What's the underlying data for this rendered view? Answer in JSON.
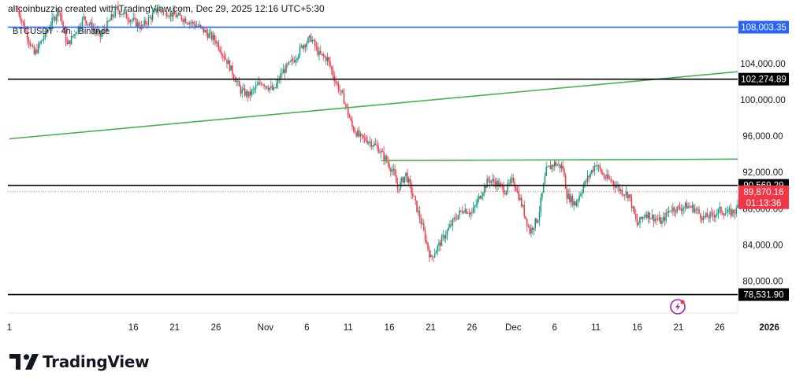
{
  "header": {
    "attribution": "altcoinbuzzio created with TradingView.com, Dec 29, 2025 12:16 UTC+5:30",
    "symbol_legend": "BTCUSDT · 4h · Binance"
  },
  "brand": {
    "name": "TradingView",
    "logo_icon": "tradingview-logo-icon"
  },
  "chart_data": {
    "type": "candlestick",
    "symbol": "BTCUSDT",
    "interval": "4h",
    "exchange": "Binance",
    "ylim": [
      76500,
      111000
    ],
    "y_ticks": [
      80000,
      84000,
      88000,
      92000,
      96000,
      100000,
      104000
    ],
    "y_tick_labels": [
      "80,000.00",
      "84,000.00",
      "88,000.00",
      "92,000.00",
      "96,000.00",
      "100,000.00",
      "104,000.00"
    ],
    "x_labels": [
      {
        "day": 0,
        "label": "1"
      },
      {
        "day": 15,
        "label": "16"
      },
      {
        "day": 20,
        "label": "21"
      },
      {
        "day": 25,
        "label": "26"
      },
      {
        "day": 31,
        "label": "Nov"
      },
      {
        "day": 36,
        "label": "6"
      },
      {
        "day": 41,
        "label": "11"
      },
      {
        "day": 46,
        "label": "16"
      },
      {
        "day": 51,
        "label": "21"
      },
      {
        "day": 56,
        "label": "26"
      },
      {
        "day": 61,
        "label": "Dec"
      },
      {
        "day": 66,
        "label": "6"
      },
      {
        "day": 71,
        "label": "11"
      },
      {
        "day": 76,
        "label": "16"
      },
      {
        "day": 81,
        "label": "21"
      },
      {
        "day": 86,
        "label": "26"
      },
      {
        "day": 92,
        "label": "2026"
      }
    ],
    "colors": {
      "up": "#089981",
      "down": "#f23645",
      "blue_line": "#2962ff",
      "level_line": "#000000",
      "trend_line": "#4caf50"
    },
    "horizontal_levels": [
      {
        "value": 108003.35,
        "label": "108,003.35",
        "color": "#2962ff"
      },
      {
        "value": 102274.89,
        "label": "102,274.89",
        "color": "#000000"
      },
      {
        "value": 90569.29,
        "label": "90,569.29",
        "color": "#000000"
      },
      {
        "value": 78531.9,
        "label": "78,531.90",
        "color": "#000000"
      }
    ],
    "trendlines": [
      {
        "from": {
          "day": 0,
          "price": 95700
        },
        "to": {
          "day": 99,
          "price": 104000
        },
        "color": "#4caf50"
      },
      {
        "from": {
          "day": 45,
          "price": 93300
        },
        "to": {
          "day": 99,
          "price": 93500
        },
        "color": "#4caf50"
      }
    ],
    "last_price": {
      "value": 89870.16,
      "label": "89,870.16",
      "countdown": "01:13:36",
      "color": "#f23645"
    },
    "path": [
      [
        1.0,
        110000
      ],
      [
        3.0,
        105000
      ],
      [
        6.0,
        110000
      ],
      [
        7.0,
        106000
      ],
      [
        9.0,
        109000
      ],
      [
        11.0,
        107000
      ],
      [
        13.0,
        110000
      ],
      [
        16.0,
        108000
      ],
      [
        18.0,
        110000
      ],
      [
        21.0,
        109000
      ],
      [
        23.0,
        108000
      ],
      [
        25.0,
        106500
      ],
      [
        26.5,
        104000
      ],
      [
        28.0,
        101000
      ],
      [
        29.0,
        100500
      ],
      [
        30.5,
        102000
      ],
      [
        32.0,
        101000
      ],
      [
        33.0,
        103000
      ],
      [
        34.5,
        104500
      ],
      [
        35.5,
        106000
      ],
      [
        36.5,
        106800
      ],
      [
        37.5,
        105000
      ],
      [
        38.5,
        104500
      ],
      [
        39.5,
        102000
      ],
      [
        40.5,
        100000
      ],
      [
        41.5,
        97000
      ],
      [
        42.5,
        95800
      ],
      [
        43.5,
        95500
      ],
      [
        44.5,
        94800
      ],
      [
        45.5,
        93500
      ],
      [
        46.5,
        92000
      ],
      [
        47.0,
        90200
      ],
      [
        48.0,
        91800
      ],
      [
        49.0,
        89000
      ],
      [
        50.0,
        86000
      ],
      [
        51.0,
        82500
      ],
      [
        52.0,
        84000
      ],
      [
        53.0,
        85500
      ],
      [
        54.0,
        87000
      ],
      [
        55.0,
        88000
      ],
      [
        56.0,
        87500
      ],
      [
        57.0,
        89500
      ],
      [
        58.0,
        91200
      ],
      [
        59.0,
        90800
      ],
      [
        60.0,
        90000
      ],
      [
        61.0,
        91200
      ],
      [
        62.0,
        88500
      ],
      [
        63.0,
        85500
      ],
      [
        64.0,
        87000
      ],
      [
        65.0,
        92200
      ],
      [
        66.0,
        93000
      ],
      [
        67.0,
        92500
      ],
      [
        67.5,
        89500
      ],
      [
        68.5,
        88500
      ],
      [
        69.5,
        90500
      ],
      [
        71.0,
        93000
      ],
      [
        72.0,
        91500
      ],
      [
        73.0,
        91000
      ],
      [
        74.0,
        90000
      ],
      [
        75.0,
        89500
      ],
      [
        76.0,
        86200
      ],
      [
        77.0,
        87500
      ],
      [
        78.0,
        87000
      ],
      [
        79.0,
        86500
      ],
      [
        80.0,
        88000
      ],
      [
        81.0,
        88000
      ],
      [
        82.0,
        88300
      ],
      [
        83.0,
        88000
      ],
      [
        84.0,
        87000
      ],
      [
        85.0,
        87200
      ],
      [
        86.0,
        87800
      ],
      [
        87.0,
        87500
      ],
      [
        88.0,
        87800
      ],
      [
        88.6,
        89900
      ]
    ],
    "grid": false
  }
}
